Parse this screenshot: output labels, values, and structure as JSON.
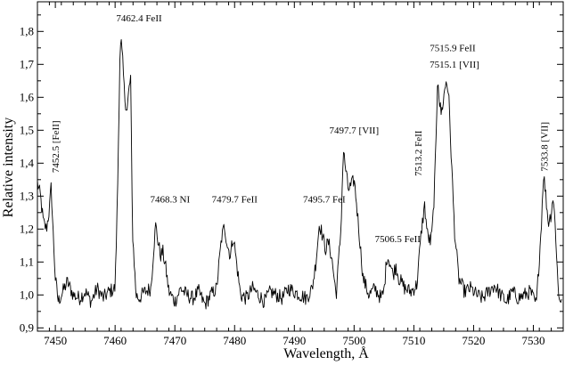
{
  "chart_data": {
    "type": "line",
    "xlabel": "Wavelength, Å",
    "ylabel": "Relative intensity",
    "xlim": [
      7447,
      7535
    ],
    "ylim": [
      0.89,
      1.89
    ],
    "x_ticks": [
      7450,
      7460,
      7470,
      7480,
      7490,
      7500,
      7510,
      7520,
      7530
    ],
    "y_ticks": [
      0.9,
      1.0,
      1.1,
      1.2,
      1.3,
      1.4,
      1.5,
      1.6,
      1.7,
      1.8
    ],
    "y_tick_labels": [
      "0,9",
      "1,0",
      "1,1",
      "1,2",
      "1,3",
      "1,4",
      "1,5",
      "1,6",
      "1,7",
      "1,8"
    ],
    "grid": false,
    "series": [
      {
        "x": [
          7447.0,
          7447.5,
          7448.0,
          7448.5,
          7449.0,
          7449.3,
          7449.6,
          7450.0,
          7450.5,
          7451.0,
          7452.0,
          7453.0,
          7454.0,
          7455.0,
          7456.0,
          7457.0,
          7458.0,
          7459.0,
          7460.0,
          7460.4,
          7460.8,
          7461.0,
          7461.3,
          7461.6,
          7462.0,
          7462.3,
          7462.6,
          7462.9,
          7463.5,
          7464.0,
          7465.0,
          7466.0,
          7466.5,
          7466.8,
          7467.2,
          7467.6,
          7468.0,
          7468.5,
          7469.0,
          7470.0,
          7471.0,
          7472.0,
          7473.0,
          7474.0,
          7475.0,
          7476.0,
          7477.0,
          7477.8,
          7478.3,
          7478.8,
          7479.3,
          7479.8,
          7480.3,
          7481.0,
          7482.0,
          7483.0,
          7484.0,
          7485.0,
          7486.0,
          7487.0,
          7488.0,
          7489.0,
          7490.0,
          7491.0,
          7492.0,
          7493.0,
          7493.6,
          7494.2,
          7494.7,
          7495.2,
          7495.7,
          7496.2,
          7497.0,
          7497.8,
          7498.2,
          7498.6,
          7499.0,
          7499.5,
          7500.0,
          7500.3,
          7500.8,
          7501.5,
          7502.5,
          7503.5,
          7504.5,
          7505.0,
          7505.5,
          7506.0,
          7506.5,
          7507.0,
          7507.5,
          7508.5,
          7509.5,
          7510.5,
          7511.3,
          7511.8,
          7512.3,
          7512.8,
          7513.1,
          7513.4,
          7513.7,
          7514.0,
          7514.3,
          7514.6,
          7515.0,
          7515.4,
          7515.8,
          7516.2,
          7516.8,
          7517.5,
          7518.5,
          7519.5,
          7520.5,
          7521.5,
          7522.5,
          7523.5,
          7524.5,
          7525.5,
          7526.5,
          7527.5,
          7528.5,
          7529.5,
          7530.5,
          7531.3,
          7531.7,
          7532.1,
          7532.5,
          7532.9,
          7533.3,
          7533.7,
          7534.2,
          7534.8
        ],
        "y": [
          1.34,
          1.3,
          1.22,
          1.2,
          1.26,
          1.33,
          1.2,
          1.05,
          0.98,
          1.0,
          1.04,
          1.0,
          0.99,
          1.01,
          0.98,
          1.02,
          0.99,
          1.01,
          1.02,
          1.3,
          1.72,
          1.77,
          1.7,
          1.6,
          1.56,
          1.62,
          1.66,
          1.2,
          1.0,
          0.99,
          1.01,
          1.02,
          1.15,
          1.21,
          1.16,
          1.12,
          1.13,
          1.08,
          1.01,
          0.98,
          1.02,
          1.0,
          0.99,
          1.01,
          0.97,
          1.0,
          1.02,
          1.17,
          1.21,
          1.15,
          1.12,
          1.18,
          1.1,
          1.0,
          0.99,
          1.02,
          1.0,
          0.98,
          1.01,
          1.0,
          0.99,
          1.02,
          1.01,
          1.0,
          0.99,
          1.02,
          1.1,
          1.22,
          1.18,
          1.14,
          1.16,
          1.12,
          1.0,
          1.2,
          1.44,
          1.38,
          1.32,
          1.33,
          1.35,
          1.3,
          1.2,
          1.05,
          1.0,
          1.02,
          0.99,
          1.01,
          1.12,
          1.1,
          1.06,
          1.09,
          1.05,
          1.02,
          1.01,
          1.03,
          1.2,
          1.27,
          1.18,
          1.16,
          1.2,
          1.3,
          1.45,
          1.68,
          1.58,
          1.55,
          1.6,
          1.65,
          1.62,
          1.45,
          1.2,
          1.05,
          1.01,
          1.02,
          1.0,
          0.99,
          1.01,
          1.03,
          1.0,
          0.98,
          1.01,
          0.99,
          1.0,
          1.01,
          0.97,
          1.2,
          1.37,
          1.3,
          1.22,
          1.24,
          1.3,
          1.2,
          1.0,
          0.98
        ]
      }
    ],
    "annotations": [
      {
        "text": "7452.5 [FeII]",
        "x": 7450.6,
        "y": 1.45,
        "rotate": true
      },
      {
        "text": "7462.4 FeII",
        "x": 7464.0,
        "y": 1.83,
        "rotate": false
      },
      {
        "text": "7468.3 NI",
        "x": 7469.2,
        "y": 1.28,
        "rotate": false
      },
      {
        "text": "7479.7 FeII",
        "x": 7480.0,
        "y": 1.28,
        "rotate": false
      },
      {
        "text": "7495.7 FeI",
        "x": 7495.0,
        "y": 1.28,
        "rotate": false
      },
      {
        "text": "7497.7 [VII]",
        "x": 7500.0,
        "y": 1.49,
        "rotate": false
      },
      {
        "text": "7506.5 FeII",
        "x": 7507.3,
        "y": 1.16,
        "rotate": false
      },
      {
        "text": "7513.2 FeII",
        "x": 7511.3,
        "y": 1.43,
        "rotate": true
      },
      {
        "text": "7515.9 FeII",
        "x": 7516.5,
        "y": 1.74,
        "rotate": false
      },
      {
        "text": "7515.1  [VII]",
        "x": 7516.8,
        "y": 1.69,
        "rotate": false
      },
      {
        "text": "7533.8 [VII]",
        "x": 7532.4,
        "y": 1.45,
        "rotate": true
      }
    ]
  }
}
